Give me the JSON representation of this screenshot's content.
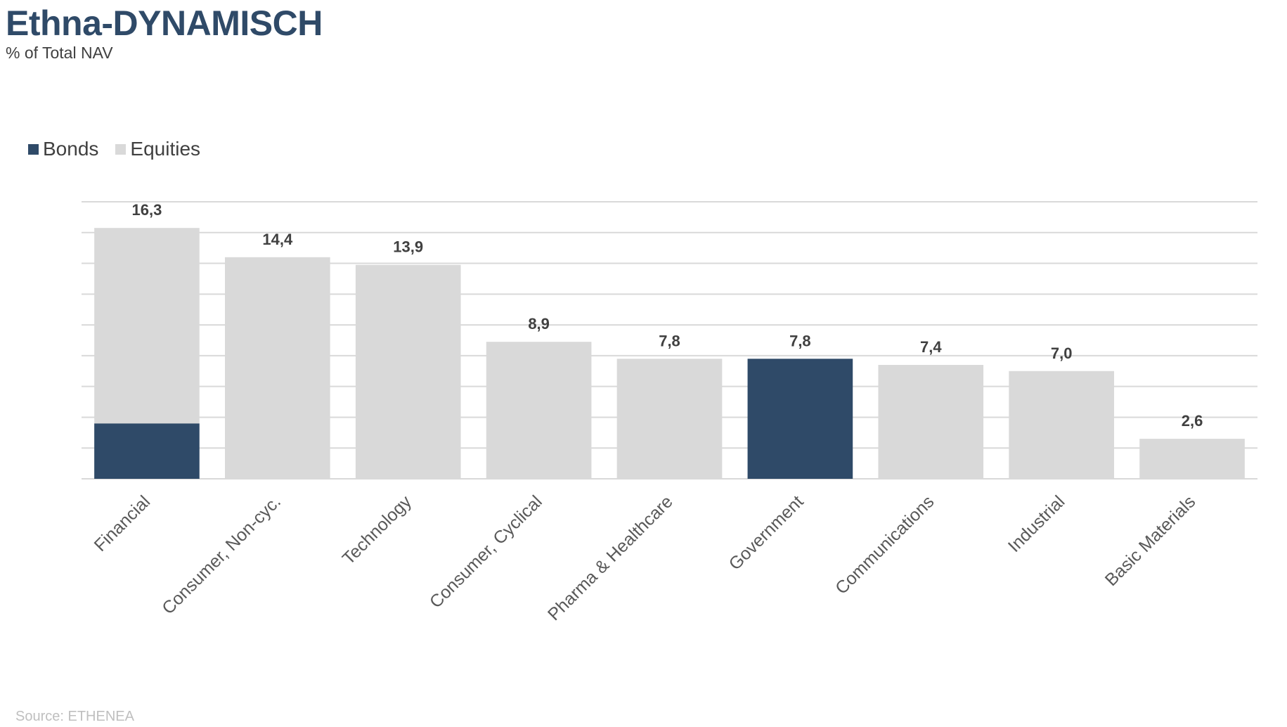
{
  "header": {
    "title": "Ethna-DYNAMISCH",
    "subtitle": "% of Total NAV"
  },
  "footer": {
    "source": "Source: ETHENEA"
  },
  "colors": {
    "bonds": "#2f4a68",
    "equities": "#d9d9d9",
    "grid": "#d9d9d9"
  },
  "chart_data": {
    "type": "bar",
    "stacked": true,
    "title": "Ethna-DYNAMISCH",
    "subtitle": "% of Total NAV",
    "categories": [
      "Financial",
      "Consumer, Non-cyc.",
      "Technology",
      "Consumer, Cyclical",
      "Pharma & Healthcare",
      "Government",
      "Communications",
      "Industrial",
      "Basic Materials"
    ],
    "series": [
      {
        "name": "Bonds",
        "color": "#2f4a68",
        "values": [
          3.6,
          0,
          0,
          0,
          0,
          7.8,
          0,
          0,
          0
        ]
      },
      {
        "name": "Equities",
        "color": "#d9d9d9",
        "values": [
          12.7,
          14.4,
          13.9,
          8.9,
          7.8,
          0,
          7.4,
          7.0,
          2.6
        ]
      }
    ],
    "totals": [
      "16,3",
      "14,4",
      "13,9",
      "8,9",
      "7,8",
      "7,8",
      "7,4",
      "7,0",
      "2,6"
    ],
    "ylim": [
      0,
      18
    ],
    "grid": true,
    "legend_position": "top-left",
    "xlabel": "",
    "ylabel": ""
  }
}
